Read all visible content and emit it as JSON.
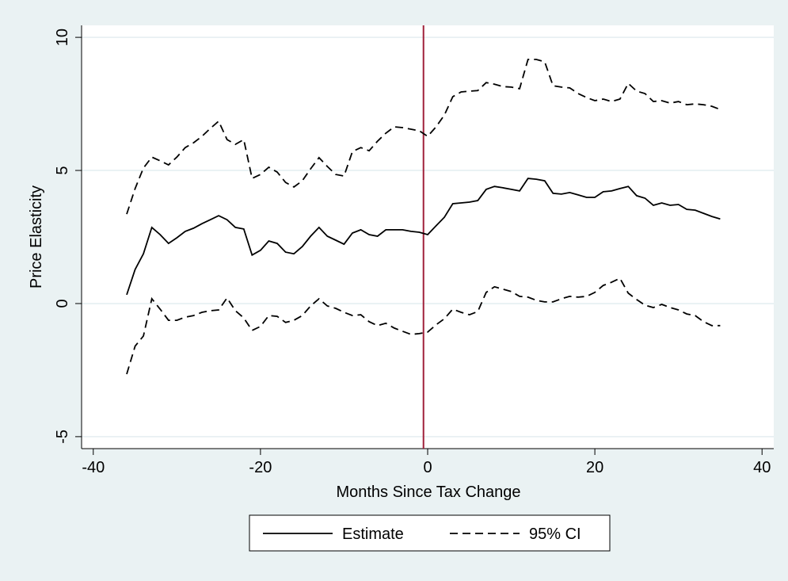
{
  "chart_data": {
    "type": "line",
    "xlabel": "Months Since Tax Change",
    "ylabel": "Price Elasticity",
    "x": [
      -36,
      -35,
      -34,
      -33,
      -32,
      -31,
      -30,
      -29,
      -28,
      -27,
      -26,
      -25,
      -24,
      -23,
      -22,
      -21,
      -20,
      -19,
      -18,
      -17,
      -16,
      -15,
      -14,
      -13,
      -12,
      -11,
      -10,
      -9,
      -8,
      -7,
      -6,
      -5,
      -4,
      -3,
      -2,
      -1,
      0,
      1,
      2,
      3,
      4,
      5,
      6,
      7,
      8,
      9,
      10,
      11,
      12,
      13,
      14,
      15,
      16,
      17,
      18,
      19,
      20,
      21,
      22,
      23,
      24,
      25,
      26,
      27,
      28,
      29,
      30,
      31,
      32,
      33,
      34,
      35
    ],
    "series": [
      {
        "name": "Estimate",
        "color": "#000000",
        "style": "solid",
        "values": [
          0.33,
          1.28,
          1.87,
          2.86,
          2.59,
          2.26,
          2.47,
          2.71,
          2.83,
          3.0,
          3.15,
          3.3,
          3.15,
          2.86,
          2.8,
          1.82,
          2.0,
          2.35,
          2.26,
          1.93,
          1.87,
          2.14,
          2.53,
          2.86,
          2.53,
          2.38,
          2.23,
          2.65,
          2.77,
          2.59,
          2.53,
          2.77,
          2.77,
          2.77,
          2.71,
          2.68,
          2.59,
          2.92,
          3.24,
          3.75,
          3.78,
          3.81,
          3.87,
          4.29,
          4.4,
          4.35,
          4.29,
          4.23,
          4.7,
          4.67,
          4.61,
          4.14,
          4.11,
          4.17,
          4.08,
          3.99,
          3.99,
          4.2,
          4.23,
          4.32,
          4.4,
          4.05,
          3.96,
          3.69,
          3.78,
          3.69,
          3.72,
          3.54,
          3.51,
          3.39,
          3.27,
          3.18
        ]
      },
      {
        "name": "95% CI",
        "color": "#000000",
        "style": "dashed",
        "upper": [
          3.36,
          4.32,
          5.09,
          5.5,
          5.36,
          5.21,
          5.5,
          5.86,
          6.04,
          6.28,
          6.58,
          6.85,
          6.16,
          5.98,
          6.16,
          4.7,
          4.85,
          5.12,
          4.94,
          4.55,
          4.38,
          4.61,
          5.06,
          5.48,
          5.15,
          4.85,
          4.79,
          5.71,
          5.86,
          5.74,
          6.1,
          6.4,
          6.64,
          6.61,
          6.55,
          6.49,
          6.28,
          6.64,
          7.08,
          7.77,
          7.95,
          7.98,
          8.0,
          8.3,
          8.24,
          8.15,
          8.13,
          8.07,
          9.17,
          9.17,
          9.08,
          8.18,
          8.13,
          8.1,
          7.89,
          7.74,
          7.62,
          7.68,
          7.59,
          7.68,
          8.27,
          7.98,
          7.89,
          7.59,
          7.62,
          7.53,
          7.59,
          7.47,
          7.5,
          7.47,
          7.41,
          7.29
        ],
        "lower": [
          -2.65,
          -1.6,
          -1.22,
          0.18,
          -0.21,
          -0.63,
          -0.63,
          -0.51,
          -0.45,
          -0.33,
          -0.27,
          -0.24,
          0.21,
          -0.27,
          -0.54,
          -1.01,
          -0.86,
          -0.45,
          -0.48,
          -0.71,
          -0.63,
          -0.45,
          -0.09,
          0.18,
          -0.09,
          -0.18,
          -0.33,
          -0.45,
          -0.42,
          -0.68,
          -0.83,
          -0.74,
          -0.92,
          -1.04,
          -1.16,
          -1.13,
          -1.07,
          -0.8,
          -0.57,
          -0.21,
          -0.33,
          -0.42,
          -0.3,
          0.42,
          0.63,
          0.54,
          0.45,
          0.27,
          0.24,
          0.12,
          0.06,
          0.06,
          0.18,
          0.27,
          0.24,
          0.27,
          0.42,
          0.68,
          0.8,
          0.95,
          0.39,
          0.15,
          -0.06,
          -0.15,
          -0.03,
          -0.15,
          -0.24,
          -0.39,
          -0.45,
          -0.68,
          -0.83,
          -0.83
        ]
      }
    ],
    "vline": {
      "value": -0.5,
      "color": "#a0213a"
    },
    "xlim": [
      -41.4,
      41.4
    ],
    "xticks": [
      -40,
      -20,
      0,
      20,
      40
    ],
    "ylim": [
      -5.45,
      10.45
    ],
    "yticks": [
      -5,
      0,
      5,
      10
    ],
    "grid": true,
    "grid_color": "#e4eef0",
    "legend": "bottom"
  }
}
